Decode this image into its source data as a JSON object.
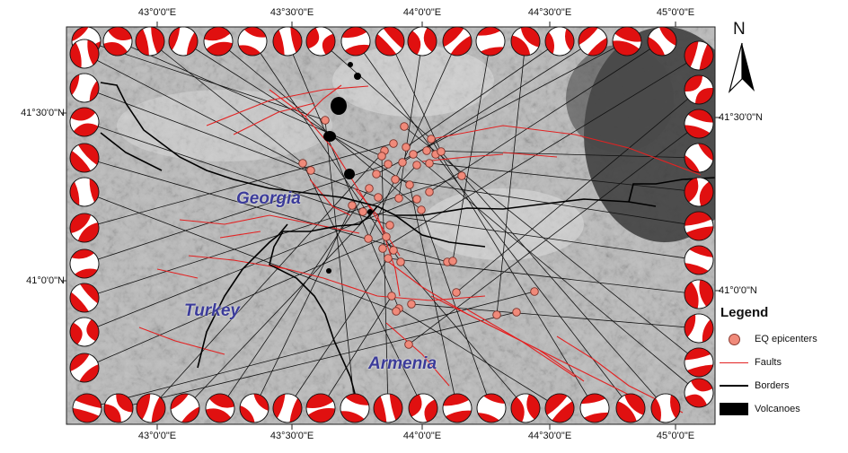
{
  "colors": {
    "fault": "#e32222",
    "border": "#000000",
    "epicenter": "#f08a7a",
    "country_label": "#3b3b9a",
    "beachball": "#e01010"
  },
  "labels": {
    "top": [
      "43°0'0\"E",
      "43°30'0\"E",
      "44°0'0\"E",
      "44°30'0\"E",
      "45°0'0\"E"
    ],
    "bottom": [
      "43°0'0\"E",
      "43°30'0\"E",
      "44°0'0\"E",
      "44°30'0\"E",
      "45°0'0\"E"
    ],
    "left": [
      "41°30'0\"N",
      "41°0'0\"N"
    ],
    "right": [
      "41°30'0\"N",
      "41°0'0\"N"
    ]
  },
  "countries": {
    "georgia": "Georgia",
    "turkey": "Turkey",
    "armenia": "Armenia"
  },
  "north": {
    "letter": "N",
    "icon": "north-arrow-icon"
  },
  "legend": {
    "title": "Legend",
    "items": [
      {
        "label": "EQ epicenters",
        "symbol": "dot"
      },
      {
        "label": "Faults",
        "symbol": "red-line"
      },
      {
        "label": "Borders",
        "symbol": "black-line"
      },
      {
        "label": "Volcanoes",
        "symbol": "black-box"
      }
    ]
  }
}
